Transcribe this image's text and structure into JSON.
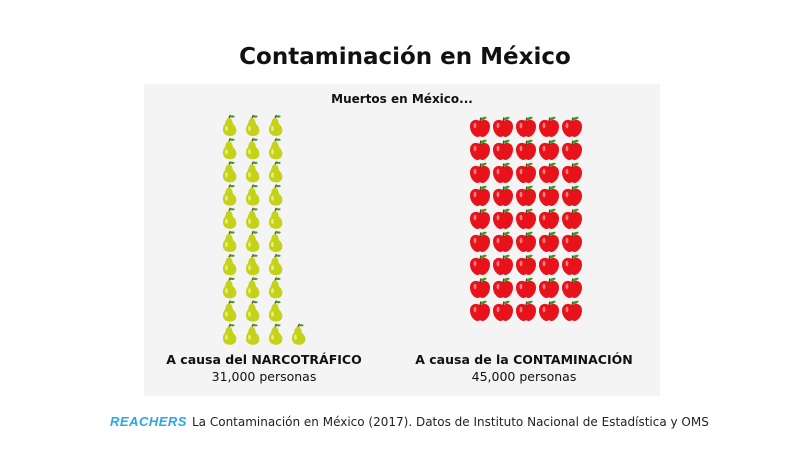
{
  "title": "Contaminación en México",
  "chart_data": {
    "type": "pictogram",
    "subtitle": "Muertos en México...",
    "categories": [
      "A causa del NARCOTRÁFICO",
      "A causa de la CONTAMINACIÓN"
    ],
    "values": [
      31000,
      45000
    ],
    "value_labels": [
      "31,000 personas",
      "45,000 personas"
    ],
    "icons": [
      "pear-icon",
      "apple-icon"
    ],
    "icon_counts": [
      31,
      45
    ],
    "colors": {
      "pear": "#c5d21a",
      "apple": "#e8121b",
      "leaf": "#3f9a2a"
    }
  },
  "footer": {
    "logo_text": "Reachers",
    "source": "La Contaminación en México (2017). Datos de Instituto Nacional de Estadística y OMS"
  }
}
